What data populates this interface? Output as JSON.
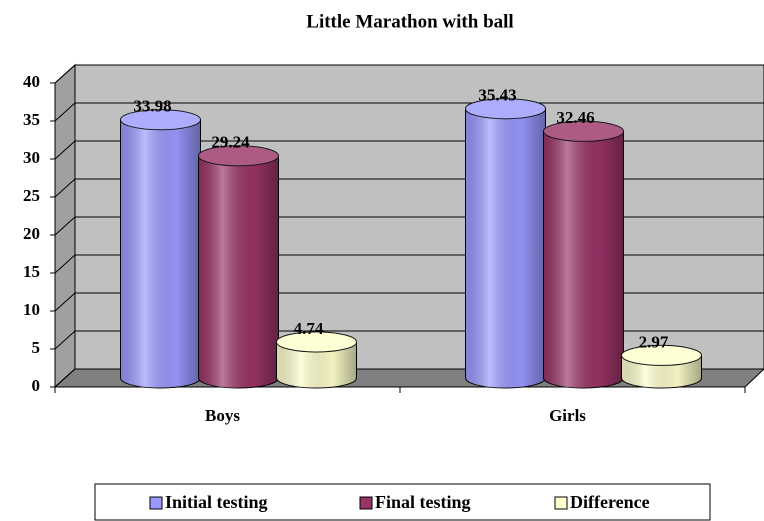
{
  "chart_data": {
    "type": "bar",
    "title": "Little Marathon with ball",
    "categories": [
      "Boys",
      "Girls"
    ],
    "series": [
      {
        "name": "Initial testing",
        "color": "#9999ff",
        "values": [
          33.98,
          35.43
        ]
      },
      {
        "name": "Final testing",
        "color": "#993366",
        "values": [
          29.24,
          32.46
        ]
      },
      {
        "name": "Difference",
        "color": "#ffffcc",
        "values": [
          4.74,
          2.97
        ]
      }
    ],
    "ylim": [
      0,
      40
    ],
    "yticks": [
      0,
      5,
      10,
      15,
      20,
      25,
      30,
      35,
      40
    ],
    "grid": true,
    "legend": "bottom"
  }
}
